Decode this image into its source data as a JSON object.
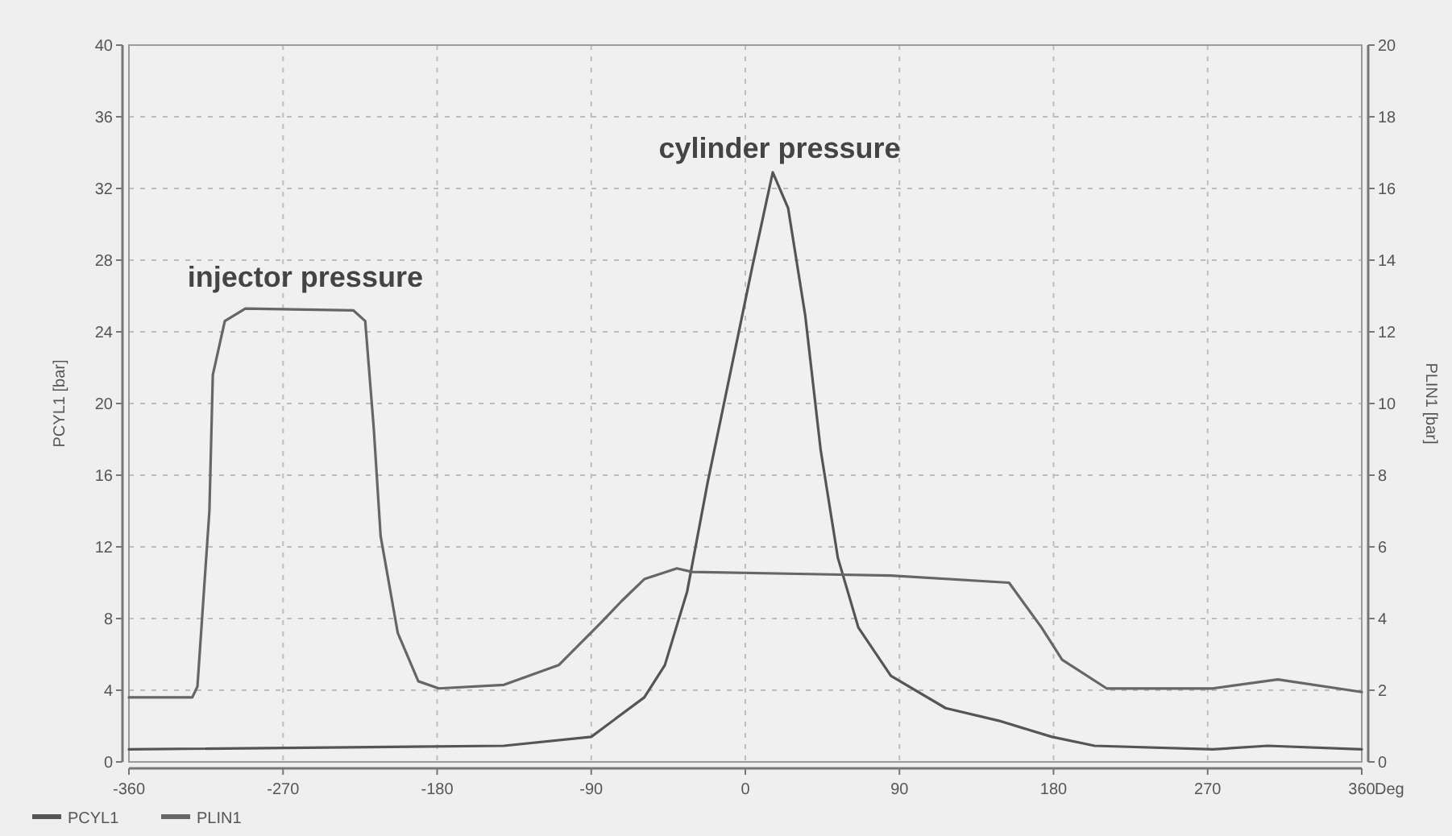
{
  "chart_data": {
    "type": "line",
    "xlabel": "Deg",
    "ylabel": "PCYL1 [bar]",
    "y2label": "PLIN1 [bar]",
    "xlim": [
      -360,
      360
    ],
    "xticks": [
      -360,
      -270,
      -180,
      -90,
      0,
      90,
      180,
      270,
      360
    ],
    "ylim": [
      0,
      40
    ],
    "yticks": [
      0,
      4,
      8,
      12,
      16,
      20,
      24,
      28,
      32,
      36,
      40
    ],
    "y2lim": [
      0,
      20
    ],
    "y2ticks": [
      0,
      2,
      4,
      6,
      8,
      10,
      12,
      14,
      16,
      18,
      20
    ],
    "grid": true,
    "legend": "bottom left",
    "line_style": "solid",
    "marker": "none",
    "annotations": [
      "cylinder pressure",
      "injector pressure"
    ],
    "series": [
      {
        "name": "PCYL1",
        "color": "#555555",
        "x": [
          -360,
          -141,
          -90,
          -59,
          -47,
          -34,
          -22,
          -9,
          4,
          16,
          25,
          35,
          44,
          54,
          66,
          85,
          117,
          148,
          179,
          204,
          273,
          305,
          360
        ],
        "values": [
          0.7,
          0.9,
          1.4,
          3.6,
          5.4,
          9.5,
          15.6,
          21.6,
          27.6,
          32.9,
          30.9,
          24.9,
          17.4,
          11.4,
          7.5,
          4.8,
          3.0,
          2.3,
          1.4,
          0.9,
          0.7,
          0.9,
          0.7
        ]
      },
      {
        "name": "PLIN1",
        "color": "#666666",
        "axis": "y2",
        "x": [
          -360,
          -323,
          -320,
          -313,
          -311,
          -304,
          -292,
          -229,
          -222,
          -217,
          -213,
          -203,
          -191,
          -179,
          -141,
          -109,
          -85,
          -72,
          -59,
          -40,
          -31,
          85,
          154,
          173,
          185,
          211,
          273,
          311,
          360
        ],
        "values": [
          1.8,
          1.8,
          2.1,
          7.0,
          10.8,
          12.3,
          12.65,
          12.6,
          12.3,
          9.3,
          6.3,
          3.6,
          2.25,
          2.05,
          2.15,
          2.7,
          3.85,
          4.5,
          5.1,
          5.4,
          5.3,
          5.2,
          5.0,
          3.75,
          2.85,
          2.05,
          2.05,
          2.3,
          1.95
        ]
      }
    ]
  }
}
